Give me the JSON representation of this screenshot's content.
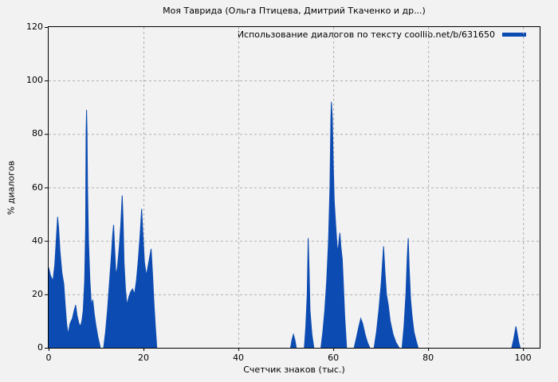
{
  "colors": {
    "background": "#f2f2f2",
    "grid": "#b0b0b0",
    "axis": "#000000"
  },
  "chart_data": {
    "type": "area",
    "title": "Моя Таврида (Ольга Птицева, Дмитрий Ткаченко и др...)",
    "xlabel": "Счетчик знаков (тыс.)",
    "ylabel": "% диалогов",
    "xlim": [
      0,
      103.5
    ],
    "ylim": [
      0,
      120
    ],
    "x_ticks": [
      0,
      20,
      40,
      60,
      80,
      100
    ],
    "y_ticks": [
      0,
      20,
      40,
      60,
      80,
      100,
      120
    ],
    "grid": true,
    "legend_position": "top-right",
    "series": [
      {
        "name": "Использование диалогов по тексту coollib.net/b/631650",
        "color": "#0c4bb2",
        "points": [
          [
            0,
            30
          ],
          [
            0.4,
            27
          ],
          [
            0.9,
            25
          ],
          [
            1.3,
            31
          ],
          [
            1.6,
            40
          ],
          [
            1.9,
            49
          ],
          [
            2.1,
            45
          ],
          [
            2.4,
            36
          ],
          [
            2.8,
            28
          ],
          [
            3.2,
            24
          ],
          [
            3.5,
            16
          ],
          [
            3.8,
            9
          ],
          [
            4.1,
            5
          ],
          [
            4.5,
            9
          ],
          [
            5.0,
            11
          ],
          [
            5.4,
            14
          ],
          [
            5.7,
            16
          ],
          [
            6.0,
            12
          ],
          [
            6.4,
            9
          ],
          [
            6.7,
            8
          ],
          [
            7.0,
            10
          ],
          [
            7.3,
            14
          ],
          [
            7.6,
            25
          ],
          [
            7.8,
            45
          ],
          [
            7.9,
            81
          ],
          [
            8.0,
            89
          ],
          [
            8.1,
            81
          ],
          [
            8.2,
            60
          ],
          [
            8.4,
            40
          ],
          [
            8.7,
            25
          ],
          [
            9.0,
            16
          ],
          [
            9.3,
            18
          ],
          [
            9.6,
            13
          ],
          [
            10.0,
            8
          ],
          [
            10.4,
            4
          ],
          [
            10.9,
            0
          ],
          [
            11.6,
            0
          ],
          [
            12.0,
            6
          ],
          [
            12.4,
            14
          ],
          [
            12.8,
            24
          ],
          [
            13.2,
            34
          ],
          [
            13.5,
            42
          ],
          [
            13.7,
            46
          ],
          [
            13.9,
            38
          ],
          [
            14.2,
            27
          ],
          [
            14.5,
            30
          ],
          [
            14.9,
            38
          ],
          [
            15.2,
            46
          ],
          [
            15.5,
            57
          ],
          [
            15.7,
            48
          ],
          [
            15.9,
            32
          ],
          [
            16.2,
            22
          ],
          [
            16.5,
            16
          ],
          [
            16.9,
            19
          ],
          [
            17.3,
            21
          ],
          [
            17.7,
            22
          ],
          [
            18.1,
            20
          ],
          [
            18.5,
            25
          ],
          [
            18.9,
            33
          ],
          [
            19.3,
            43
          ],
          [
            19.6,
            52
          ],
          [
            19.9,
            42
          ],
          [
            20.2,
            32
          ],
          [
            20.6,
            27
          ],
          [
            21.0,
            31
          ],
          [
            21.3,
            34
          ],
          [
            21.6,
            37
          ],
          [
            21.9,
            28
          ],
          [
            22.2,
            17
          ],
          [
            22.5,
            8
          ],
          [
            22.8,
            0
          ],
          [
            51.0,
            0
          ],
          [
            51.3,
            3
          ],
          [
            51.6,
            5
          ],
          [
            51.9,
            3
          ],
          [
            52.2,
            0
          ],
          [
            53.9,
            0
          ],
          [
            54.2,
            8
          ],
          [
            54.5,
            20
          ],
          [
            54.7,
            41
          ],
          [
            54.9,
            30
          ],
          [
            55.1,
            14
          ],
          [
            55.5,
            5
          ],
          [
            55.9,
            0
          ],
          [
            57.4,
            0
          ],
          [
            57.8,
            6
          ],
          [
            58.2,
            14
          ],
          [
            58.6,
            25
          ],
          [
            59.0,
            40
          ],
          [
            59.3,
            60
          ],
          [
            59.5,
            86
          ],
          [
            59.6,
            92
          ],
          [
            59.8,
            86
          ],
          [
            60.0,
            68
          ],
          [
            60.2,
            55
          ],
          [
            60.5,
            46
          ],
          [
            60.8,
            38
          ],
          [
            61.0,
            36
          ],
          [
            61.2,
            40
          ],
          [
            61.4,
            43
          ],
          [
            61.6,
            38
          ],
          [
            61.9,
            33
          ],
          [
            62.1,
            25
          ],
          [
            62.4,
            12
          ],
          [
            62.8,
            0
          ],
          [
            64.4,
            0
          ],
          [
            64.9,
            4
          ],
          [
            65.4,
            8
          ],
          [
            65.8,
            11
          ],
          [
            66.2,
            9
          ],
          [
            66.7,
            5
          ],
          [
            67.2,
            2
          ],
          [
            67.7,
            0
          ],
          [
            68.6,
            0
          ],
          [
            69.1,
            6
          ],
          [
            69.6,
            14
          ],
          [
            70.1,
            24
          ],
          [
            70.6,
            38
          ],
          [
            70.9,
            28
          ],
          [
            71.2,
            20
          ],
          [
            71.6,
            16
          ],
          [
            72.0,
            10
          ],
          [
            72.6,
            5
          ],
          [
            73.2,
            2
          ],
          [
            73.9,
            0
          ],
          [
            74.5,
            0
          ],
          [
            74.9,
            8
          ],
          [
            75.3,
            20
          ],
          [
            75.6,
            34
          ],
          [
            75.8,
            41
          ],
          [
            76.0,
            30
          ],
          [
            76.3,
            18
          ],
          [
            76.6,
            12
          ],
          [
            77.0,
            6
          ],
          [
            77.4,
            3
          ],
          [
            77.9,
            0
          ],
          [
            97.6,
            0
          ],
          [
            98.0,
            3
          ],
          [
            98.3,
            6
          ],
          [
            98.5,
            8
          ],
          [
            98.8,
            5
          ],
          [
            99.1,
            2
          ],
          [
            99.4,
            0
          ]
        ]
      }
    ]
  }
}
